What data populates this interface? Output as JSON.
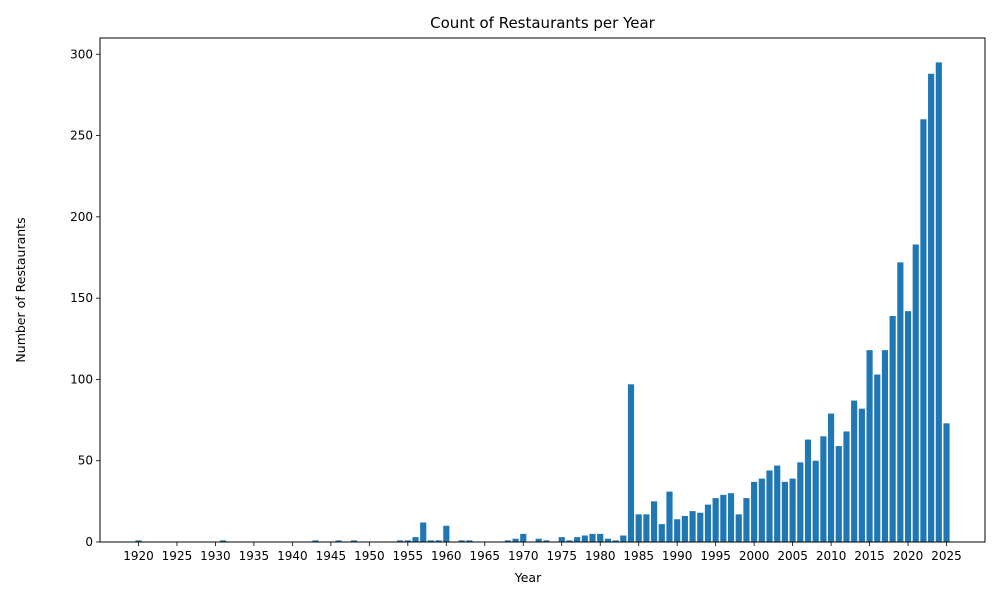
{
  "chart_data": {
    "type": "bar",
    "title": "Count of Restaurants per Year",
    "xlabel": "Year",
    "ylabel": "Number of Restaurants",
    "xlim": [
      1915,
      2030
    ],
    "ylim": [
      0,
      310
    ],
    "bar_color": "#1f77b4",
    "grid": false,
    "x_ticks": [
      "1920",
      "1925",
      "1930",
      "1935",
      "1940",
      "1945",
      "1950",
      "1955",
      "1960",
      "1965",
      "1970",
      "1975",
      "1980",
      "1985",
      "1990",
      "1995",
      "2000",
      "2005",
      "2010",
      "2015",
      "2020",
      "2025"
    ],
    "y_ticks": [
      "0",
      "50",
      "100",
      "150",
      "200",
      "250",
      "300"
    ],
    "x": [
      1920,
      1931,
      1943,
      1946,
      1948,
      1954,
      1955,
      1956,
      1957,
      1958,
      1959,
      1960,
      1962,
      1963,
      1968,
      1969,
      1970,
      1972,
      1973,
      1975,
      1976,
      1977,
      1978,
      1979,
      1980,
      1981,
      1982,
      1983,
      1984,
      1985,
      1986,
      1987,
      1988,
      1989,
      1990,
      1991,
      1992,
      1993,
      1994,
      1995,
      1996,
      1997,
      1998,
      1999,
      2000,
      2001,
      2002,
      2003,
      2004,
      2005,
      2006,
      2007,
      2008,
      2009,
      2010,
      2011,
      2012,
      2013,
      2014,
      2015,
      2016,
      2017,
      2018,
      2019,
      2020,
      2021,
      2022,
      2023,
      2024,
      2025
    ],
    "values": [
      1,
      1,
      1,
      1,
      1,
      1,
      1,
      3,
      12,
      1,
      1,
      10,
      1,
      1,
      1,
      2,
      5,
      2,
      1,
      3,
      1,
      3,
      4,
      5,
      5,
      2,
      1,
      4,
      97,
      17,
      17,
      25,
      11,
      31,
      14,
      16,
      19,
      18,
      23,
      27,
      29,
      30,
      17,
      27,
      37,
      39,
      44,
      47,
      37,
      39,
      49,
      63,
      50,
      65,
      79,
      59,
      68,
      87,
      82,
      118,
      103,
      118,
      139,
      172,
      142,
      183,
      260,
      288,
      295,
      73
    ]
  }
}
